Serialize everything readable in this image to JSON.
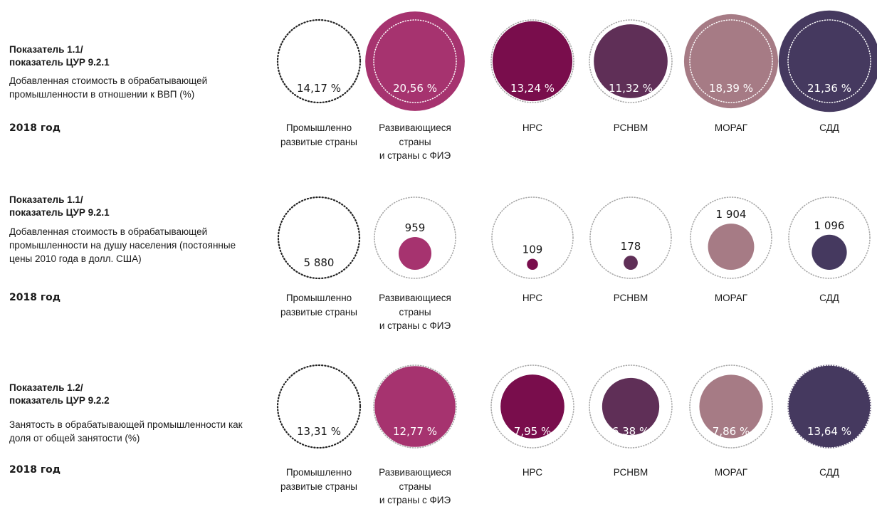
{
  "chart_data": [
    {
      "type": "bubble",
      "indicator_title": "Показатель 1.1/\nпоказатель ЦУР 9.2.1",
      "indicator_description": "Добавленная стоимость в обрабатывающей промышленности в отношении к ВВП (%)",
      "year_label": "2018 год",
      "categories": [
        "Промышленно\nразвитые страны",
        "Развивающиеся\nстраны\nи страны с ФИЭ",
        "НРС",
        "РСНВМ",
        "МОРАГ",
        "СДД"
      ],
      "values": [
        14.17,
        20.56,
        13.24,
        11.32,
        18.39,
        21.36
      ],
      "value_labels": [
        "14,17 %",
        "20,56 %",
        "13,24 %",
        "11,32 %",
        "18,39 %",
        "21,36 %"
      ],
      "reference_value": 14.17
    },
    {
      "type": "bubble",
      "indicator_title": "Показатель 1.1/\nпоказатель ЦУР 9.2.1",
      "indicator_description": "Добавленная стоимость в обрабатывающей промышленности на душу населения (постоянные цены 2010 года в долл. США)",
      "year_label": "2018 год",
      "categories": [
        "Промышленно\nразвитые страны",
        "Развивающиеся\nстраны\nи страны с ФИЭ",
        "НРС",
        "РСНВМ",
        "МОРАГ",
        "СДД"
      ],
      "values": [
        5880,
        959,
        109,
        178,
        1904,
        1096
      ],
      "value_labels": [
        "5 880",
        "959",
        "109",
        "178",
        "1 904",
        "1 096"
      ],
      "reference_value": 5880
    },
    {
      "type": "bubble",
      "indicator_title": "Показатель 1.2/\nпоказатель ЦУР 9.2.2",
      "indicator_description": "Занятость в обрабатывающей промышленности как доля от общей занятости (%)",
      "year_label": "2018 год",
      "categories": [
        "Промышленно\nразвитые страны",
        "Развивающиеся\nстраны\nи страны с ФИЭ",
        "НРС",
        "РСНВМ",
        "МОРАГ",
        "СДД"
      ],
      "values": [
        13.31,
        12.77,
        7.95,
        6.38,
        7.86,
        13.64
      ],
      "value_labels": [
        "13,31 %",
        "12,77 %",
        "7,95 %",
        "6,38 %",
        "7,86 %",
        "13,64 %"
      ],
      "reference_value": 13.31
    }
  ],
  "colors": {
    "reference_outline": "#222222",
    "guide_outline": "#a8a8a8",
    "guide_inner": "#ffffff",
    "series": [
      "#ffffff",
      "#a6336f",
      "#790d4c",
      "#5f2f57",
      "#a67b85",
      "#45395f"
    ]
  }
}
